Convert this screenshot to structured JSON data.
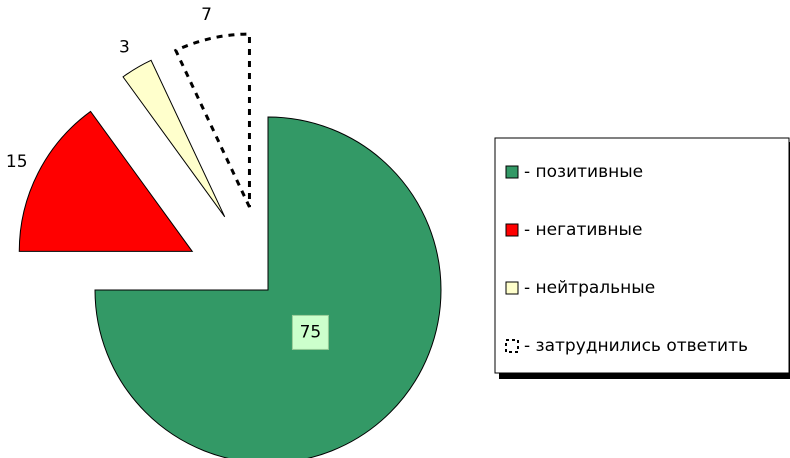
{
  "chart_data": {
    "type": "pie",
    "categories": [
      "- позитивные",
      "- негативные",
      "- нейтральные",
      "- затруднились ответить"
    ],
    "values": [
      75,
      15,
      3,
      7
    ],
    "colors": [
      "#339966",
      "#ff0000",
      "#ffffcc",
      "none"
    ]
  }
}
